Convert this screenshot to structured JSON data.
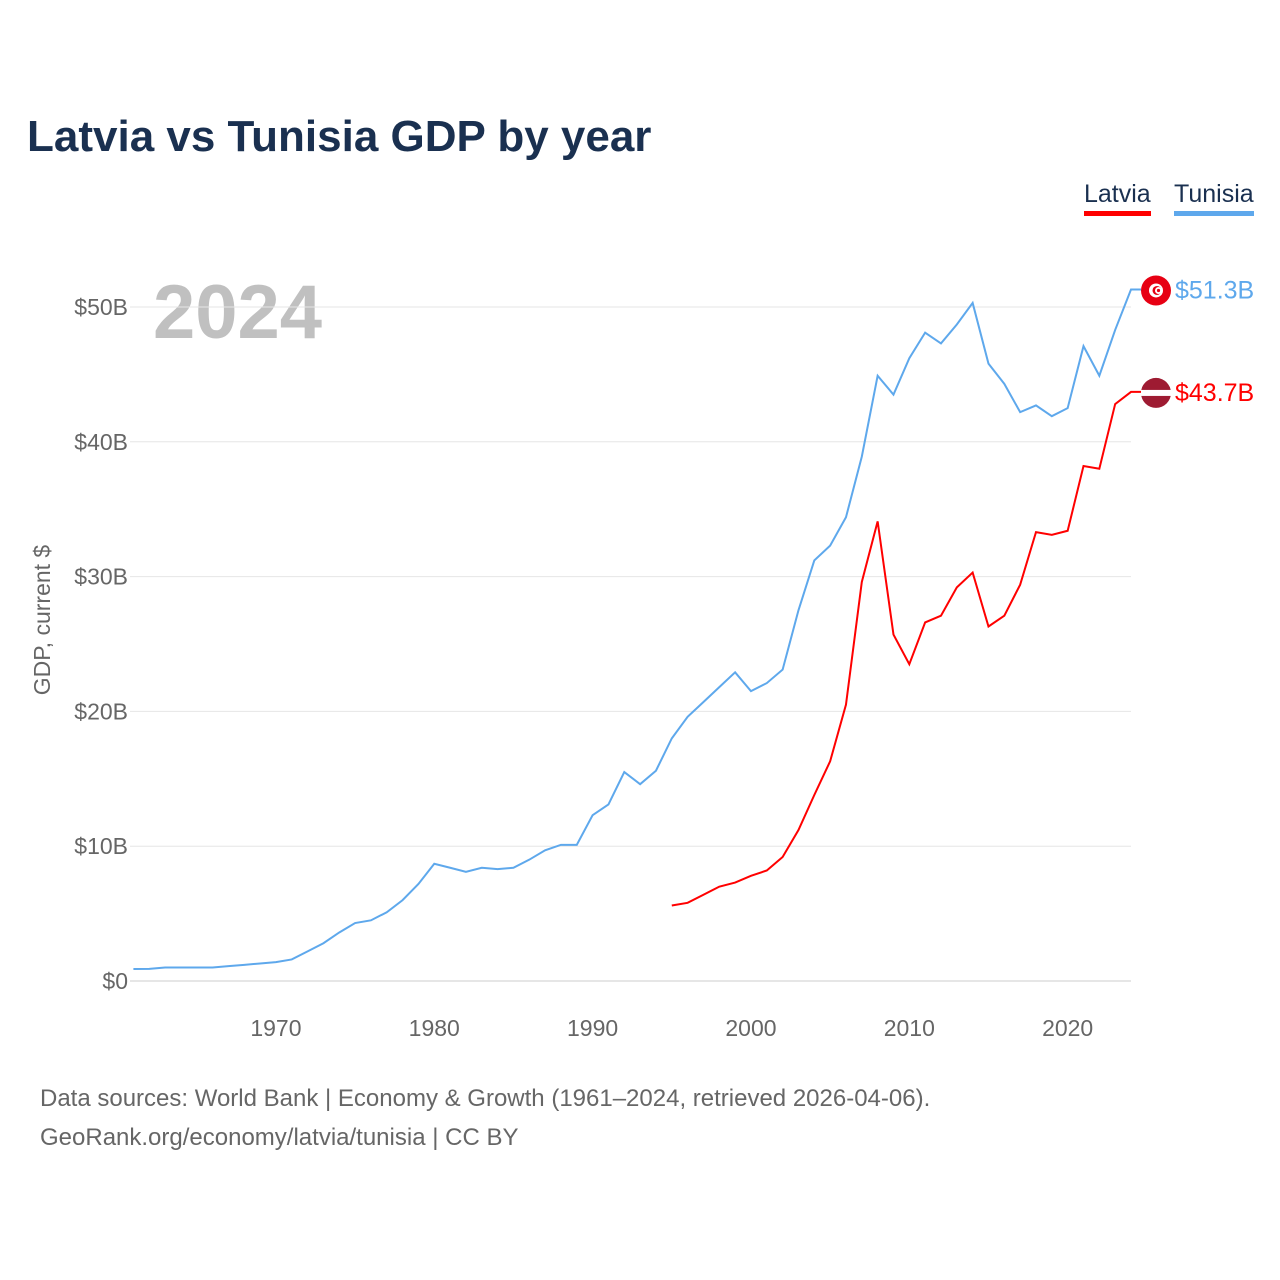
{
  "title": "Latvia vs Tunisia GDP by year",
  "year_watermark": "2024",
  "source_line1": "Data sources: World Bank | Economy & Growth (1961–2024, retrieved 2026-04-06).",
  "source_line2": "GeoRank.org/economy/latvia/tunisia | CC BY",
  "chart_data": {
    "type": "line",
    "title": "Latvia vs Tunisia GDP by year",
    "xlabel": "",
    "ylabel": "GDP, current $",
    "xlim": [
      1961,
      2024
    ],
    "ylim": [
      0,
      50
    ],
    "y_unit": "billion USD",
    "xticks": [
      1970,
      1980,
      1990,
      2000,
      2010,
      2020
    ],
    "yticks": [
      {
        "v": 0,
        "label": "$0"
      },
      {
        "v": 10,
        "label": "$10B"
      },
      {
        "v": 20,
        "label": "$20B"
      },
      {
        "v": 30,
        "label": "$30B"
      },
      {
        "v": 40,
        "label": "$40B"
      },
      {
        "v": 50,
        "label": "$50B"
      }
    ],
    "grid": true,
    "legend_position": "top-right",
    "series": [
      {
        "name": "Latvia",
        "color": "#ff0000",
        "end_label": "$43.7B",
        "flag": "latvia-flag",
        "start": 1995,
        "values": [
          5.6,
          5.8,
          6.4,
          7.0,
          7.3,
          7.8,
          8.2,
          9.2,
          11.2,
          13.8,
          16.3,
          20.5,
          29.6,
          34.1,
          25.7,
          23.5,
          26.6,
          27.1,
          29.2,
          30.3,
          26.3,
          27.1,
          29.4,
          33.3,
          33.1,
          33.4,
          38.2,
          38.0,
          42.8,
          43.7
        ]
      },
      {
        "name": "Tunisia",
        "color": "#5ea8ec",
        "end_label": "$51.3B",
        "flag": "tunisia-flag",
        "start": 1961,
        "values": [
          0.89,
          0.9,
          1.0,
          1.0,
          1.0,
          1.0,
          1.1,
          1.2,
          1.3,
          1.4,
          1.6,
          2.2,
          2.8,
          3.6,
          4.3,
          4.5,
          5.1,
          6.0,
          7.2,
          8.7,
          8.4,
          8.1,
          8.4,
          8.3,
          8.4,
          9.0,
          9.7,
          10.1,
          10.1,
          12.3,
          13.1,
          15.5,
          14.6,
          15.6,
          18.0,
          19.6,
          20.7,
          21.8,
          22.9,
          21.5,
          22.1,
          23.1,
          27.5,
          31.2,
          32.3,
          34.4,
          38.9,
          44.9,
          43.5,
          46.2,
          48.1,
          47.3,
          48.7,
          50.3,
          45.8,
          44.3,
          42.2,
          42.7,
          41.9,
          42.5,
          47.1,
          44.9,
          48.3,
          51.3
        ]
      }
    ]
  }
}
